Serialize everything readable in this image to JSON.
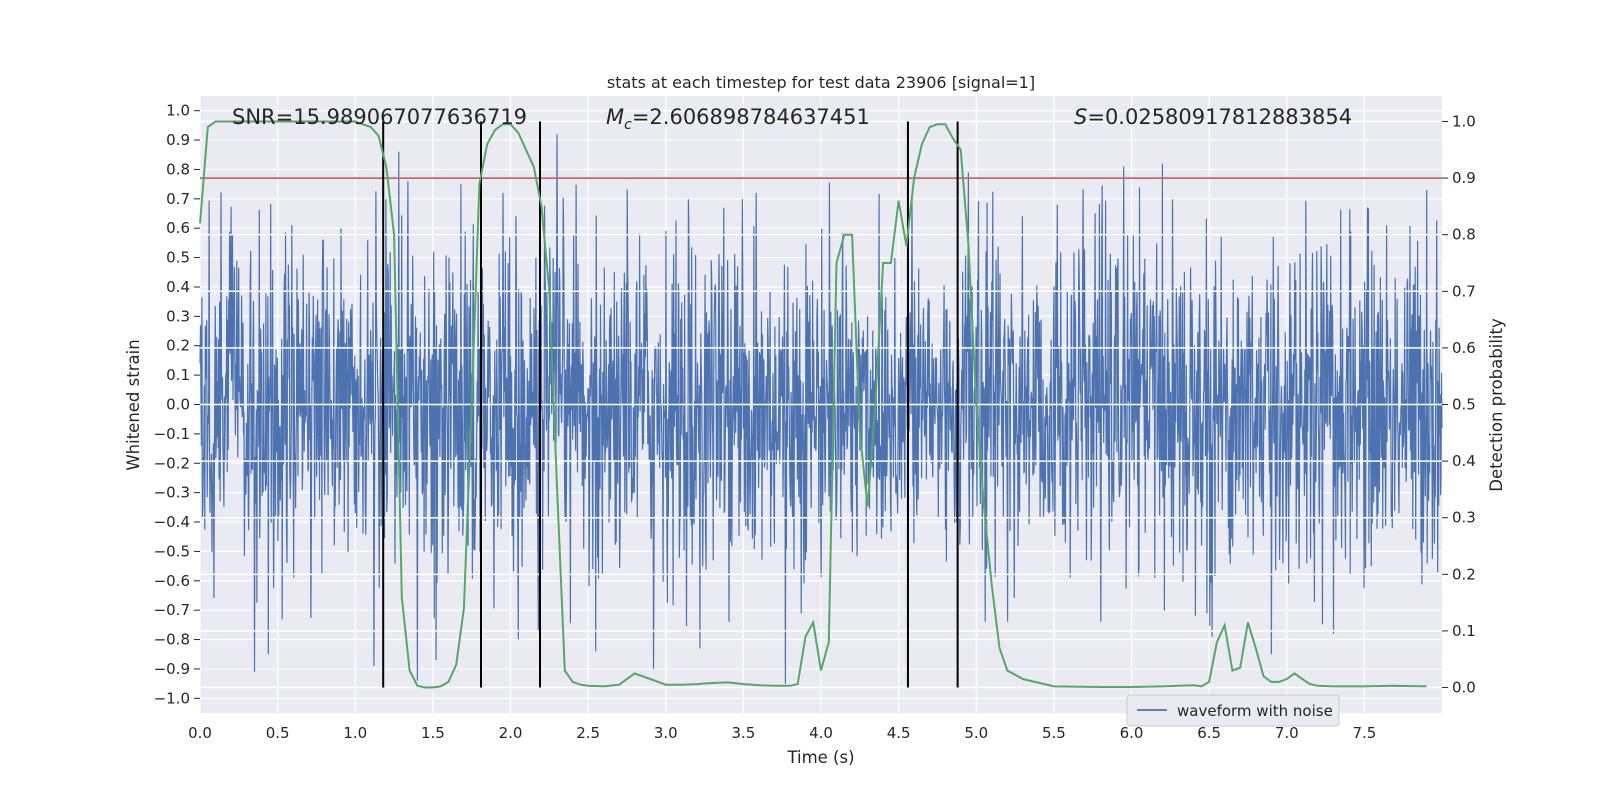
{
  "chart_data": {
    "type": "line",
    "title": "stats at each timestep for test data 23906 [signal=1]",
    "xlabel": "Time (s)",
    "ylabel": "Whitened strain",
    "y2label": "Detection probability",
    "xlim": [
      0,
      8
    ],
    "ylim": [
      -1.05,
      1.05
    ],
    "y2lim": [
      -0.045,
      1.045
    ],
    "x_ticks": [
      "0.0",
      "0.5",
      "1.0",
      "1.5",
      "2.0",
      "2.5",
      "3.0",
      "3.5",
      "4.0",
      "4.5",
      "5.0",
      "5.5",
      "6.0",
      "6.5",
      "7.0",
      "7.5"
    ],
    "y_ticks": [
      "1.0",
      "0.9",
      "0.8",
      "0.7",
      "0.6",
      "0.5",
      "0.4",
      "0.3",
      "0.2",
      "0.1",
      "0.0",
      "−0.1",
      "−0.2",
      "−0.3",
      "−0.4",
      "−0.5",
      "−0.6",
      "−0.7",
      "−0.8",
      "−0.9",
      "−1.0"
    ],
    "y2_ticks": [
      "1.0",
      "0.9",
      "0.8",
      "0.7",
      "0.6",
      "0.5",
      "0.4",
      "0.3",
      "0.2",
      "0.1",
      "0.0"
    ],
    "annotations": {
      "snr": "SNR=15.989067077636719",
      "mc_symbol": "M",
      "mc_sub": "c",
      "mc_value": "=2.606898784637451",
      "s_symbol": "S",
      "s_value": "=0.02580917812883854"
    },
    "legend": {
      "label": "waveform with noise",
      "placement": "lower-right"
    },
    "threshold": {
      "value": 0.9,
      "axis": "y2",
      "color": "#c44e52"
    },
    "vertical_lines": [
      1.18,
      1.81,
      2.19,
      4.56,
      4.88
    ],
    "waveform": {
      "name": "waveform with noise",
      "color": "#4c72b0",
      "duration": 8.0,
      "n_points": 2600,
      "typical_amplitude": 0.45,
      "spikes": [
        {
          "t": 0.35,
          "y": -0.91
        },
        {
          "t": 0.44,
          "y": -0.85
        },
        {
          "t": 1.12,
          "y": -0.89
        },
        {
          "t": 1.28,
          "y": 0.86
        },
        {
          "t": 1.4,
          "y": -0.94
        },
        {
          "t": 1.52,
          "y": -0.87
        },
        {
          "t": 2.05,
          "y": -0.8
        },
        {
          "t": 2.18,
          "y": -0.77
        },
        {
          "t": 2.3,
          "y": 0.92
        },
        {
          "t": 2.55,
          "y": -0.84
        },
        {
          "t": 2.92,
          "y": -0.9
        },
        {
          "t": 3.22,
          "y": -0.83
        },
        {
          "t": 3.77,
          "y": -0.95
        },
        {
          "t": 5.95,
          "y": 0.81
        },
        {
          "t": 6.2,
          "y": 0.82
        },
        {
          "t": 6.9,
          "y": -0.85
        },
        {
          "t": 6.52,
          "y": -0.79
        },
        {
          "t": 7.3,
          "y": -0.78
        },
        {
          "t": 7.9,
          "y": 0.73
        },
        {
          "t": 4.95,
          "y": 0.79
        },
        {
          "t": 1.95,
          "y": 0.72
        }
      ]
    },
    "detection_probability": {
      "name": "detection probability",
      "color": "#55a868",
      "x": [
        0.0,
        0.05,
        0.1,
        0.2,
        0.3,
        0.5,
        0.7,
        0.9,
        1.0,
        1.05,
        1.1,
        1.15,
        1.2,
        1.25,
        1.3,
        1.35,
        1.4,
        1.45,
        1.5,
        1.55,
        1.6,
        1.65,
        1.7,
        1.75,
        1.8,
        1.85,
        1.9,
        1.95,
        2.0,
        2.05,
        2.1,
        2.15,
        2.2,
        2.25,
        2.3,
        2.35,
        2.4,
        2.45,
        2.5,
        2.6,
        2.7,
        2.8,
        2.9,
        3.0,
        3.1,
        3.2,
        3.3,
        3.4,
        3.5,
        3.6,
        3.7,
        3.8,
        3.85,
        3.9,
        3.95,
        4.0,
        4.05,
        4.1,
        4.15,
        4.2,
        4.25,
        4.3,
        4.35,
        4.4,
        4.45,
        4.5,
        4.55,
        4.6,
        4.65,
        4.7,
        4.75,
        4.8,
        4.85,
        4.9,
        4.95,
        5.0,
        5.05,
        5.1,
        5.15,
        5.2,
        5.3,
        5.5,
        5.8,
        6.0,
        6.2,
        6.3,
        6.4,
        6.45,
        6.5,
        6.55,
        6.6,
        6.65,
        6.7,
        6.75,
        6.8,
        6.85,
        6.9,
        6.95,
        7.0,
        7.05,
        7.1,
        7.15,
        7.2,
        7.3,
        7.5,
        7.7,
        7.9
      ],
      "y": [
        0.82,
        0.99,
        1.0,
        1.0,
        1.0,
        1.0,
        1.0,
        1.0,
        1.0,
        0.995,
        0.99,
        0.975,
        0.92,
        0.8,
        0.16,
        0.03,
        0.003,
        0.0,
        0.0,
        0.002,
        0.01,
        0.04,
        0.14,
        0.5,
        0.89,
        0.96,
        0.985,
        0.995,
        0.995,
        0.98,
        0.95,
        0.92,
        0.85,
        0.7,
        0.35,
        0.03,
        0.01,
        0.005,
        0.003,
        0.002,
        0.005,
        0.025,
        0.015,
        0.005,
        0.005,
        0.006,
        0.008,
        0.009,
        0.006,
        0.004,
        0.003,
        0.003,
        0.006,
        0.09,
        0.115,
        0.03,
        0.08,
        0.75,
        0.8,
        0.8,
        0.45,
        0.32,
        0.5,
        0.75,
        0.75,
        0.86,
        0.78,
        0.9,
        0.96,
        0.99,
        0.995,
        0.995,
        0.97,
        0.95,
        0.78,
        0.5,
        0.32,
        0.18,
        0.07,
        0.03,
        0.015,
        0.002,
        0.001,
        0.001,
        0.002,
        0.003,
        0.004,
        0.002,
        0.01,
        0.08,
        0.11,
        0.03,
        0.035,
        0.115,
        0.07,
        0.02,
        0.01,
        0.01,
        0.015,
        0.025,
        0.015,
        0.006,
        0.003,
        0.002,
        0.002,
        0.003,
        0.002
      ]
    }
  }
}
